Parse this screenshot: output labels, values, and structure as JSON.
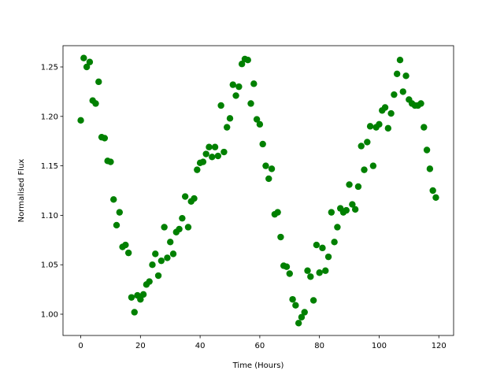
{
  "chart_data": {
    "type": "scatter",
    "x_label": "Time (Hours)",
    "y_label": "Normalised Flux",
    "color": "#008000",
    "x": [
      0,
      1,
      2,
      3,
      4,
      5,
      6,
      7,
      8,
      9,
      10,
      11,
      12,
      13,
      14,
      15,
      16,
      17,
      18,
      19,
      20,
      21,
      22,
      23,
      24,
      25,
      26,
      27,
      28,
      29,
      30,
      31,
      32,
      33,
      34,
      35,
      36,
      37,
      38,
      39,
      40,
      41,
      42,
      43,
      44,
      45,
      46,
      47,
      48,
      49,
      50,
      51,
      52,
      53,
      54,
      55,
      56,
      57,
      58,
      59,
      60,
      61,
      62,
      63,
      64,
      65,
      66,
      67,
      68,
      69,
      70,
      71,
      72,
      73,
      74,
      75,
      76,
      77,
      78,
      79,
      80,
      81,
      82,
      83,
      84,
      85,
      86,
      87,
      88,
      89,
      90,
      91,
      92,
      93,
      94,
      95,
      96,
      97,
      98,
      99,
      100,
      101,
      102,
      103,
      104,
      105,
      106,
      107,
      108,
      109,
      110,
      111,
      112,
      113,
      114,
      115,
      116,
      117,
      118,
      119
    ],
    "values": [
      1.196,
      1.259,
      1.25,
      1.255,
      1.216,
      1.213,
      1.235,
      1.179,
      1.178,
      1.155,
      1.154,
      1.116,
      1.09,
      1.103,
      1.068,
      1.07,
      1.062,
      1.017,
      1.002,
      1.019,
      1.015,
      1.02,
      1.03,
      1.033,
      1.05,
      1.061,
      1.039,
      1.054,
      1.088,
      1.057,
      1.073,
      1.061,
      1.083,
      1.086,
      1.097,
      1.119,
      1.088,
      1.114,
      1.117,
      1.146,
      1.153,
      1.154,
      1.162,
      1.169,
      1.159,
      1.169,
      1.16,
      1.211,
      1.164,
      1.189,
      1.198,
      1.232,
      1.221,
      1.23,
      1.253,
      1.258,
      1.257,
      1.213,
      1.233,
      1.197,
      1.192,
      1.172,
      1.15,
      1.137,
      1.147,
      1.101,
      1.103,
      1.078,
      1.049,
      1.048,
      1.041,
      1.015,
      1.009,
      0.991,
      0.997,
      1.002,
      1.044,
      1.038,
      1.014,
      1.07,
      1.042,
      1.067,
      1.044,
      1.058,
      1.103,
      1.073,
      1.088,
      1.107,
      1.103,
      1.105,
      1.131,
      1.111,
      1.106,
      1.129,
      1.17,
      1.146,
      1.174,
      1.19,
      1.15,
      1.189,
      1.192,
      1.206,
      1.209,
      1.188,
      1.203,
      1.222,
      1.243,
      1.257,
      1.225,
      1.241,
      1.217,
      1.213,
      1.211,
      1.211,
      1.213,
      1.189,
      1.166,
      1.147,
      1.125,
      1.118
    ],
    "xlim": [
      -5.95,
      124.95
    ],
    "ylim": [
      0.9785,
      1.2715
    ],
    "xticks": [
      0,
      20,
      40,
      60,
      80,
      100,
      120
    ],
    "yticks": [
      {
        "value": 1,
        "label": "1.00"
      },
      1.05,
      {
        "value": 1.1,
        "label": "1.10"
      },
      1.15,
      {
        "value": 1.2,
        "label": "1.20"
      },
      1.25
    ]
  }
}
